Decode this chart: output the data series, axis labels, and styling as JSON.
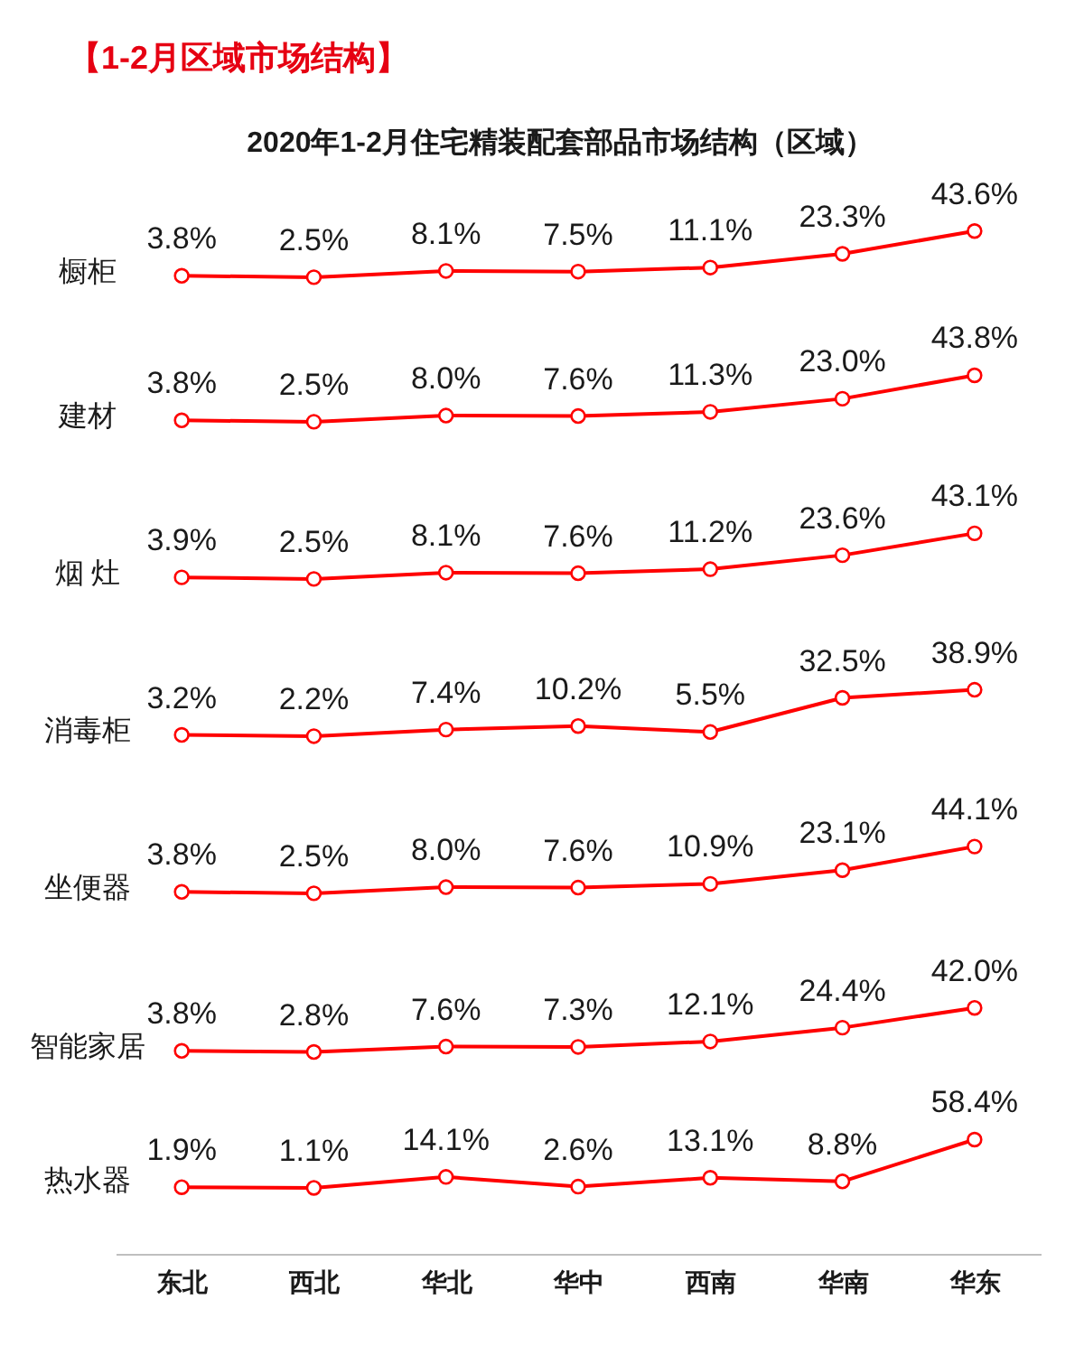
{
  "chart_data": [
    {
      "type": "line",
      "title": "【1-2月区域市场结构】",
      "subtitle": "2020年1-2月住宅精装配套部品市场结构（区域）",
      "ylabel": "橱柜",
      "categories": [
        null,
        null,
        null,
        null,
        null,
        null,
        null
      ],
      "values": [
        3.8,
        2.5,
        8.1,
        7.5,
        11.1,
        23.3,
        43.6
      ],
      "value_labels": [
        "3.8%",
        "2.5%",
        "8.1%",
        "7.5%",
        "11.1%",
        "23.3%",
        "43.6%"
      ],
      "color": "#ff0000",
      "marker": "circle",
      "tick_labels": false
    },
    {
      "type": "line",
      "ylabel": "建材",
      "categories": [
        null,
        null,
        null,
        null,
        null,
        null,
        null
      ],
      "values": [
        3.8,
        2.5,
        8.0,
        7.6,
        11.3,
        23.0,
        43.8
      ],
      "value_labels": [
        "3.8%",
        "2.5%",
        "8.0%",
        "7.6%",
        "11.3%",
        "23.0%",
        "43.8%"
      ],
      "color": "#ff0000",
      "marker": "circle",
      "tick_labels": false
    },
    {
      "type": "line",
      "ylabel": "烟 灶",
      "categories": [
        null,
        null,
        null,
        null,
        null,
        null,
        null
      ],
      "values": [
        3.9,
        2.5,
        8.1,
        7.6,
        11.2,
        23.6,
        43.1
      ],
      "value_labels": [
        "3.9%",
        "2.5%",
        "8.1%",
        "7.6%",
        "11.2%",
        "23.6%",
        "43.1%"
      ],
      "color": "#ff0000",
      "marker": "circle",
      "tick_labels": false
    },
    {
      "type": "line",
      "ylabel": "消毒柜",
      "categories": [
        null,
        null,
        null,
        null,
        null,
        null,
        null
      ],
      "values": [
        3.2,
        2.2,
        7.4,
        10.2,
        5.5,
        32.5,
        38.9
      ],
      "value_labels": [
        "3.2%",
        "2.2%",
        "7.4%",
        "10.2%",
        "5.5%",
        "32.5%",
        "38.9%"
      ],
      "color": "#ff0000",
      "marker": "circle",
      "tick_labels": false
    },
    {
      "type": "line",
      "ylabel": "坐便器",
      "categories": [
        null,
        null,
        null,
        null,
        null,
        null,
        null
      ],
      "values": [
        3.8,
        2.5,
        8.0,
        7.6,
        10.9,
        23.1,
        44.1
      ],
      "value_labels": [
        "3.8%",
        "2.5%",
        "8.0%",
        "7.6%",
        "10.9%",
        "23.1%",
        "44.1%"
      ],
      "color": "#ff0000",
      "marker": "circle",
      "tick_labels": false
    },
    {
      "type": "line",
      "ylabel": "智能家居",
      "categories": [
        null,
        null,
        null,
        null,
        null,
        null,
        null
      ],
      "values": [
        3.8,
        2.8,
        7.6,
        7.3,
        12.1,
        24.4,
        42.0
      ],
      "value_labels": [
        "3.8%",
        "2.8%",
        "7.6%",
        "7.3%",
        "12.1%",
        "24.4%",
        "42.0%"
      ],
      "color": "#ff0000",
      "marker": "circle",
      "tick_labels": false
    },
    {
      "type": "line",
      "ylabel": "热水器",
      "categories": [
        "东北",
        "西北",
        "华北",
        "华中",
        "西南",
        "华南",
        "华东"
      ],
      "values": [
        1.9,
        1.1,
        14.1,
        2.6,
        13.1,
        8.8,
        58.4
      ],
      "value_labels": [
        "1.9%",
        "1.1%",
        "14.1%",
        "2.6%",
        "13.1%",
        "8.8%",
        "58.4%"
      ],
      "color": "#ff0000",
      "marker": "circle",
      "tick_labels": "x"
    }
  ]
}
